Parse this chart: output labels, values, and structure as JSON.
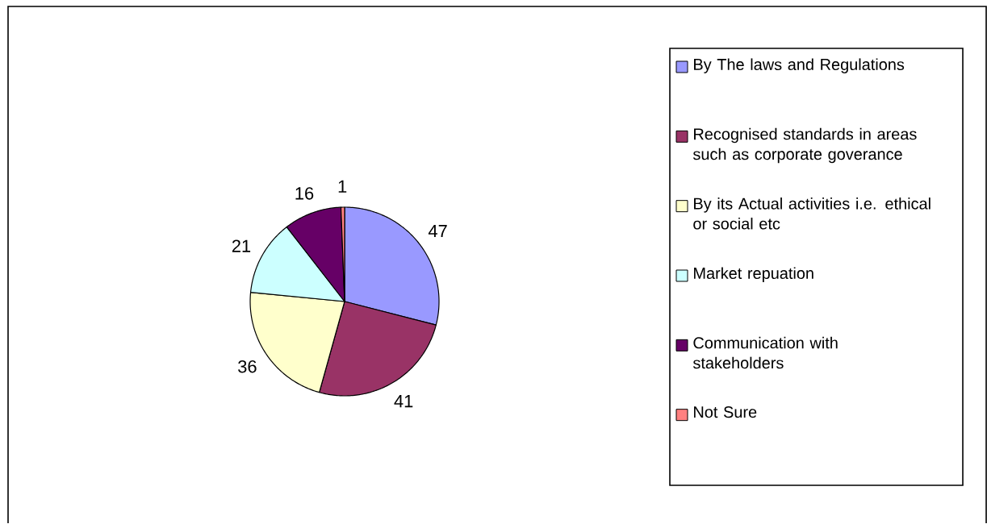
{
  "chart_data": {
    "type": "pie",
    "categories": [
      "By The laws and Regulations",
      "Recognised standards in areas such as corporate goverance",
      "By its Actual activities i.e. ethical or social etc",
      "Market repuation",
      "Communication with stakeholders",
      "Not Sure"
    ],
    "values": [
      47,
      41,
      36,
      21,
      16,
      1
    ],
    "colors": [
      "#9999ff",
      "#993366",
      "#ffffcc",
      "#ccffff",
      "#660066",
      "#ff8080"
    ],
    "data_labels": true,
    "legend": "right"
  }
}
